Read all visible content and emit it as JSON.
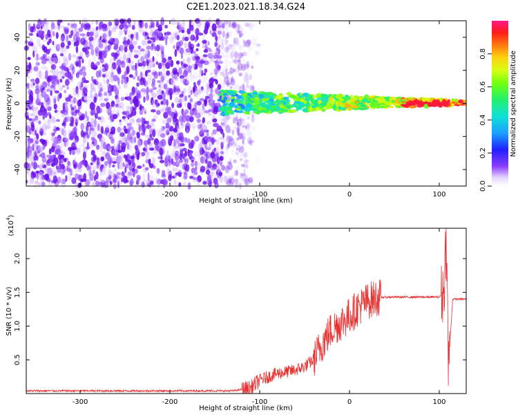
{
  "title": "C2E1.2023.021.18.34.G24",
  "top_panel": {
    "xlabel": "Height of straight line (km)",
    "ylabel": "Frequency (Hz)",
    "colorbar_label": "Normalized spectral amplitude",
    "colorbar_ticks": [
      "0.0",
      "0.2",
      "0.4",
      "0.6",
      "0.8"
    ],
    "xticks": [
      "-300",
      "-200",
      "-100",
      "0",
      "100"
    ],
    "yticks": [
      "40",
      "20",
      "0",
      "-20",
      "-40"
    ]
  },
  "bottom_panel": {
    "xlabel": "Height of straight line (km)",
    "ylabel": "SNR (10 * v/v)",
    "multiplier": "(x10",
    "multiplier_exp": "4",
    "multiplier_close": ")",
    "xticks": [
      "-300",
      "-200",
      "-100",
      "0",
      "100"
    ],
    "yticks": [
      "0.5",
      "1.0",
      "1.5",
      "2.0"
    ]
  },
  "chart_data": [
    {
      "type": "heatmap",
      "title": "C2E1.2023.021.18.34.G24",
      "xlabel": "Height of straight line (km)",
      "ylabel": "Frequency (Hz)",
      "xlim": [
        -360,
        130
      ],
      "ylim": [
        -50,
        50
      ],
      "colorbar": {
        "label": "Normalized spectral amplitude",
        "range": [
          0,
          1
        ]
      },
      "description_values": {
        "noise_region_x": [
          -360,
          -120
        ],
        "noise_amplitude": [
          0.0,
          0.15
        ],
        "signal_band_frequency_hz": [
          -5,
          5
        ],
        "signal_start_height_km": -145,
        "signal_peak_amplitude": 1.0
      }
    },
    {
      "type": "line",
      "xlabel": "Height of straight line (km)",
      "ylabel": "SNR (10 * v/v)",
      "xlim": [
        -360,
        130
      ],
      "ylim": [
        0,
        2.45
      ],
      "y_multiplier": 10000,
      "series": [
        {
          "x": [
            -360,
            -300,
            -200,
            -130,
            -110,
            -100,
            -90,
            -80,
            -70,
            -60,
            -50,
            -40,
            -30,
            -20,
            -10,
            0,
            10,
            20,
            30,
            40,
            60,
            80,
            100,
            105,
            108,
            110,
            115,
            130
          ],
          "y": [
            0.04,
            0.04,
            0.04,
            0.04,
            0.08,
            0.2,
            0.25,
            0.3,
            0.32,
            0.35,
            0.4,
            0.5,
            0.75,
            0.95,
            1.05,
            1.15,
            1.28,
            1.37,
            1.42,
            1.43,
            1.43,
            1.43,
            1.43,
            1.5,
            2.4,
            0.4,
            1.4,
            1.4
          ]
        }
      ]
    }
  ],
  "colors": {
    "series": "#e83232",
    "heatmap_noise": "#7a1ff0",
    "axis": "#000000"
  }
}
